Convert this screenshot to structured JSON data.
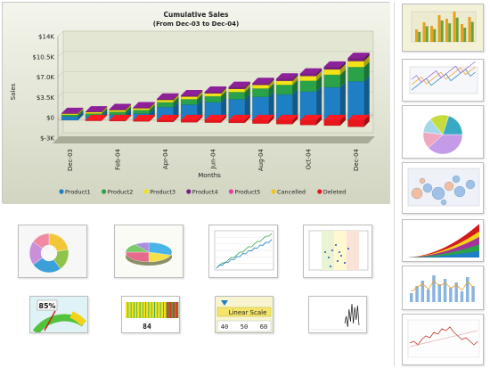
{
  "main_chart": {
    "title_line1": "Cumulative Sales",
    "title_line2": "(From Dec-03 to Dec-04)",
    "ylabel": "Sales",
    "xlabel": "Months",
    "chart_data": {
      "type": "bar",
      "stacked": true,
      "categories": [
        "Dec-03",
        "Jan-04",
        "Feb-04",
        "Mar-04",
        "Apr-04",
        "May-04",
        "Jun-04",
        "Jul-04",
        "Aug-04",
        "Sep-04",
        "Oct-04",
        "Nov-04",
        "Dec-04"
      ],
      "x_tick_labels": [
        "Dec-03",
        "Feb-04",
        "Apr-04",
        "Jun-04",
        "Aug-04",
        "Oct-04",
        "Dec-04"
      ],
      "y_tick_labels": [
        "$-3K",
        "$0",
        "$3.5K",
        "$7.0K",
        "$10.5K",
        "$14K"
      ],
      "ylim": [
        -3000,
        14000
      ],
      "series": [
        {
          "name": "Product1",
          "color": "#1e7fc4",
          "values": [
            600,
            700,
            900,
            1100,
            2200,
            2600,
            3000,
            3500,
            3900,
            4300,
            4800,
            5500,
            6500
          ]
        },
        {
          "name": "Product2",
          "color": "#2aa24a",
          "values": [
            300,
            400,
            500,
            600,
            800,
            900,
            1000,
            1200,
            1400,
            1600,
            1800,
            2100,
            2400
          ]
        },
        {
          "name": "Product3",
          "color": "#f1e317",
          "values": [
            200,
            250,
            300,
            300,
            400,
            450,
            500,
            550,
            600,
            700,
            800,
            900,
            1000
          ]
        },
        {
          "name": "Product4",
          "color": "#7a1d86",
          "values": [
            100,
            100,
            150,
            150,
            200,
            200,
            250,
            300,
            300,
            350,
            400,
            450,
            500
          ]
        },
        {
          "name": "Product5",
          "color": "#e43ca8",
          "values": [
            0,
            0,
            0,
            0,
            0,
            0,
            0,
            0,
            0,
            0,
            0,
            0,
            0
          ]
        },
        {
          "name": "Cancelled",
          "color": "#f7c21a",
          "values": [
            0,
            0,
            0,
            0,
            0,
            0,
            0,
            0,
            0,
            0,
            0,
            0,
            0
          ]
        },
        {
          "name": "Deleted",
          "color": "#e8161c",
          "values": [
            0,
            -100,
            -150,
            -200,
            -300,
            -350,
            -400,
            -450,
            -550,
            -650,
            -800,
            -900,
            -1100
          ]
        }
      ],
      "grid": true,
      "legend": "bottom"
    }
  },
  "thumbs_row1": [
    {
      "name": "doughnut-thumb",
      "type": "doughnut"
    },
    {
      "name": "pie3d-thumb",
      "type": "pie3d"
    },
    {
      "name": "line-thumb",
      "type": "line"
    },
    {
      "name": "scatter-thumb",
      "type": "scatter"
    }
  ],
  "thumbs_row2": [
    {
      "name": "gauge-thumb",
      "type": "gauge",
      "value_label": "85%"
    },
    {
      "name": "bar-meter-thumb",
      "type": "barmeter",
      "value_label": "84"
    },
    {
      "name": "linear-scale-thumb",
      "type": "linear",
      "title": "Linear Scale",
      "ticks": [
        "40",
        "50",
        "60"
      ]
    },
    {
      "name": "stock-thumb",
      "type": "stock"
    }
  ],
  "sidebar_thumbs": [
    {
      "name": "side-bar-3d",
      "type": "bar3d"
    },
    {
      "name": "side-multiline",
      "type": "multiline"
    },
    {
      "name": "side-pie",
      "type": "pie"
    },
    {
      "name": "side-bubble",
      "type": "bubble"
    },
    {
      "name": "side-area",
      "type": "area"
    },
    {
      "name": "side-combo",
      "type": "combo"
    },
    {
      "name": "side-finance",
      "type": "finance"
    }
  ],
  "colors": {
    "panel_bg": "#d9dccd",
    "plot_bg": "#e8ead9",
    "floor": "#c6c9b6"
  }
}
